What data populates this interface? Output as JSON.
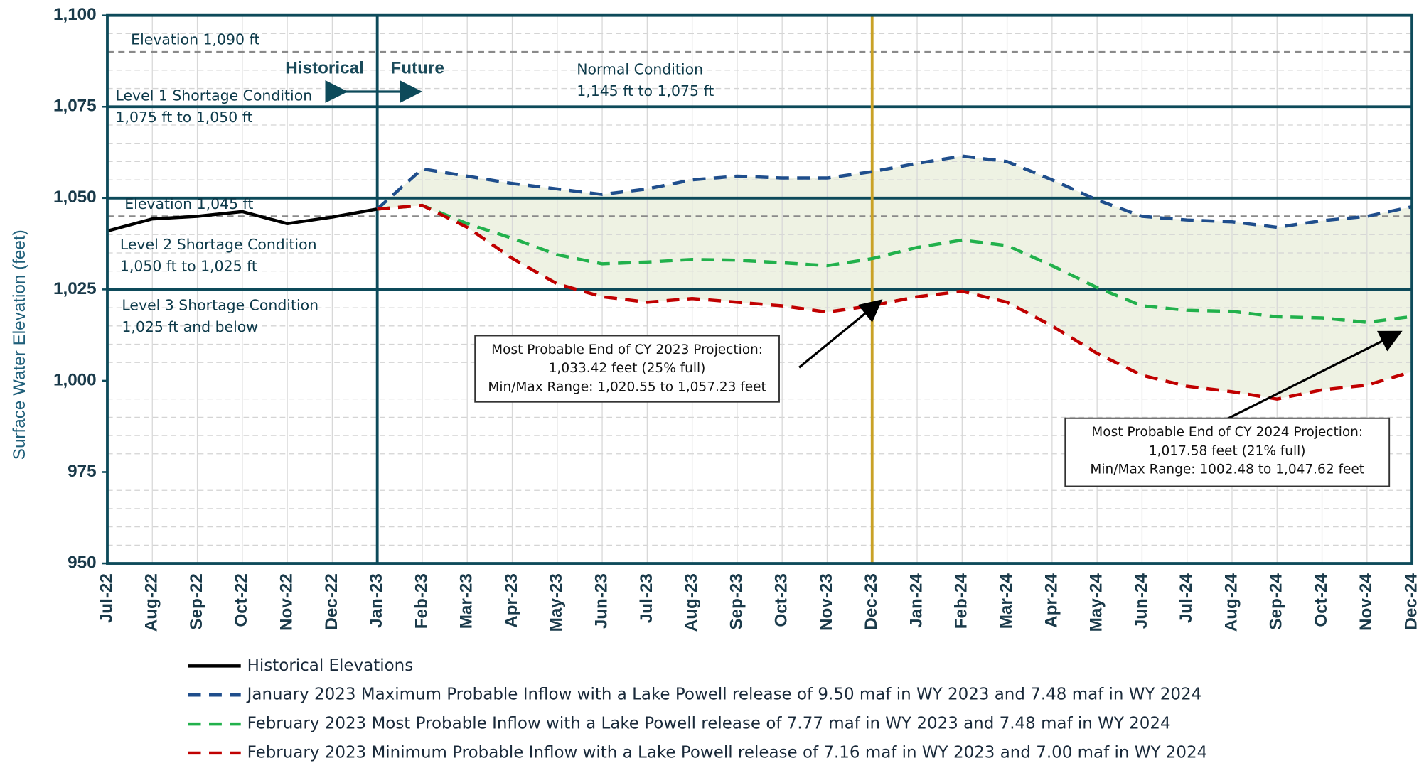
{
  "chart_data": {
    "type": "line",
    "y_label": "Surface Water Elevation (feet)",
    "categories": [
      "Jul-22",
      "Aug-22",
      "Sep-22",
      "Oct-22",
      "Nov-22",
      "Dec-22",
      "Jan-23",
      "Feb-23",
      "Mar-23",
      "Apr-23",
      "May-23",
      "Jun-23",
      "Jul-23",
      "Aug-23",
      "Sep-23",
      "Oct-23",
      "Nov-23",
      "Dec-23",
      "Jan-24",
      "Feb-24",
      "Mar-24",
      "Apr-24",
      "May-24",
      "Jun-24",
      "Jul-24",
      "Aug-24",
      "Sep-24",
      "Oct-24",
      "Nov-24",
      "Dec-24"
    ],
    "series": [
      {
        "name": "Historical Elevations",
        "color": "#000000",
        "dashed": false,
        "values": [
          1041,
          1044.3,
          1045,
          1046.3,
          1043,
          1044.8,
          1047,
          null,
          null,
          null,
          null,
          null,
          null,
          null,
          null,
          null,
          null,
          null,
          null,
          null,
          null,
          null,
          null,
          null,
          null,
          null,
          null,
          null,
          null,
          null
        ]
      },
      {
        "name": "January 2023 Maximum Probable Inflow with a Lake Powell release of 9.50 maf in WY 2023 and 7.48 maf in WY 2024",
        "color": "#1f4e8c",
        "dashed": true,
        "values": [
          null,
          null,
          null,
          null,
          null,
          null,
          1047,
          1058,
          1056,
          1054,
          1052.5,
          1051,
          1052.5,
          1055,
          1056,
          1055.5,
          1055.5,
          1057.23,
          1059.5,
          1061.5,
          1060,
          1055,
          1049.5,
          1045,
          1044,
          1043.5,
          1042,
          1043.8,
          1045,
          1047.62
        ]
      },
      {
        "name": "February 2023 Most Probable Inflow with a Lake Powell release of 7.77 maf in WY 2023 and 7.48 maf in WY 2024",
        "color": "#22b14c",
        "dashed": true,
        "values": [
          null,
          null,
          null,
          null,
          null,
          null,
          1047,
          1048,
          1043,
          1039,
          1034.5,
          1032,
          1032.5,
          1033.2,
          1033,
          1032.3,
          1031.5,
          1033.42,
          1036.5,
          1038.5,
          1037,
          1031.5,
          1025.5,
          1020.5,
          1019.3,
          1019,
          1017.5,
          1017.2,
          1016,
          1017.58
        ]
      },
      {
        "name": "February 2023 Minimum Probable Inflow with a Lake Powell release of 7.16 maf in WY 2023 and 7.00 maf in WY 2024",
        "color": "#c00000",
        "dashed": true,
        "values": [
          null,
          null,
          null,
          null,
          null,
          null,
          1047,
          1048,
          1042,
          1033.5,
          1026.5,
          1023,
          1021.5,
          1022.5,
          1021.5,
          1020.5,
          1018.8,
          1020.55,
          1023,
          1024.5,
          1021.5,
          1015,
          1007.5,
          1001.5,
          998.5,
          997,
          995,
          997.5,
          998.8,
          1002.48
        ]
      }
    ],
    "range_fill": "#eef2e3",
    "ylim": [
      950,
      1100
    ],
    "yticks": [
      950,
      975,
      {
        "value": 1000,
        "label": "1,000"
      },
      {
        "value": 1025,
        "label": "1,025"
      },
      {
        "value": 1050,
        "label": "1,050"
      },
      {
        "value": 1075,
        "label": "1,075"
      },
      {
        "value": 1100,
        "label": "1,100"
      }
    ],
    "minor_yticks": [
      955,
      960,
      965,
      970,
      980,
      985,
      990,
      995,
      1005,
      1010,
      1015,
      1020,
      1030,
      1035,
      1040,
      1055,
      1060,
      1065,
      1070,
      1080,
      1085,
      1095
    ],
    "grid": true,
    "reference_lines": [
      {
        "value": 1090,
        "label": "Elevation 1,090 ft",
        "dashed": true
      },
      {
        "value": 1075,
        "dashed": false
      },
      {
        "value": 1050,
        "dashed": false
      },
      {
        "value": 1045,
        "label": "Elevation 1,045 ft",
        "dashed": true
      },
      {
        "value": 1025,
        "dashed": false
      }
    ],
    "vertical_lines": [
      {
        "category": "Jan-23",
        "color": "#0d4a5a"
      },
      {
        "category": "Dec-23",
        "color": "#c9a227"
      }
    ],
    "annotations": [
      "Historical",
      "Future",
      "Normal Condition",
      "1,145 ft to 1,075 ft",
      "Level 1 Shortage  Condition",
      "1,075 ft to 1,050 ft",
      "Level 2 Shortage  Condition",
      "1,050 ft to 1,025 ft",
      "Level 3 Shortage  Condition",
      "1,025  ft and below"
    ],
    "callouts": [
      [
        "Most Probable End of CY 2023 Projection:",
        "1,033.42 feet (25% full)",
        "Min/Max Range: 1,020.55 to 1,057.23 feet"
      ],
      [
        "Most Probable End of CY 2024 Projection:",
        "1,017.58 feet (21% full)",
        "Min/Max Range: 1002.48 to 1,047.62 feet"
      ]
    ]
  }
}
